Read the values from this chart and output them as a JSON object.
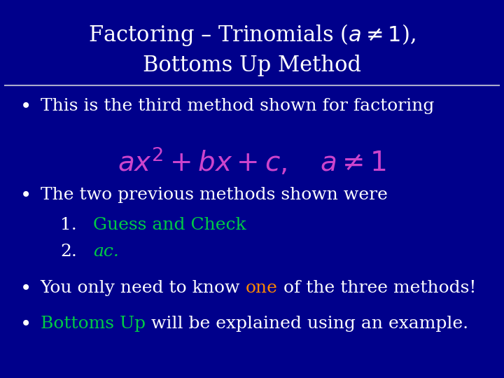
{
  "background_color": "#00008B",
  "title_line1": "Factoring – Trinomials ($a \\neq 1$),",
  "title_line2": "Bottoms Up Method",
  "title_color": "#FFFFFF",
  "title_fontsize": 22,
  "divider_color": "#AAAACC",
  "bullet_color": "#FFFFFF",
  "bullet_fontsize": 18,
  "item_color": "#00CC44",
  "formula_color": "#CC44CC",
  "formula_fontsize": 28,
  "bullet4_highlight_color": "#FF8800",
  "bullet5_highlight_color": "#00CC44",
  "bullet1": "This is the third method shown for factoring",
  "formula": "$ax^2 + bx + c, \\quad a \\neq 1$",
  "bullet3_pre": "The two previous methods shown were",
  "item1_label": "1.",
  "item1_text": "Guess and Check",
  "item2_label": "2.",
  "item2_text": "ac.",
  "bullet4_pre": "You only need to know ",
  "bullet4_highlight": "one",
  "bullet4_post": " of the three methods!",
  "bullet5_highlight": "Bottoms Up",
  "bullet5_post": " will be explained using an example."
}
